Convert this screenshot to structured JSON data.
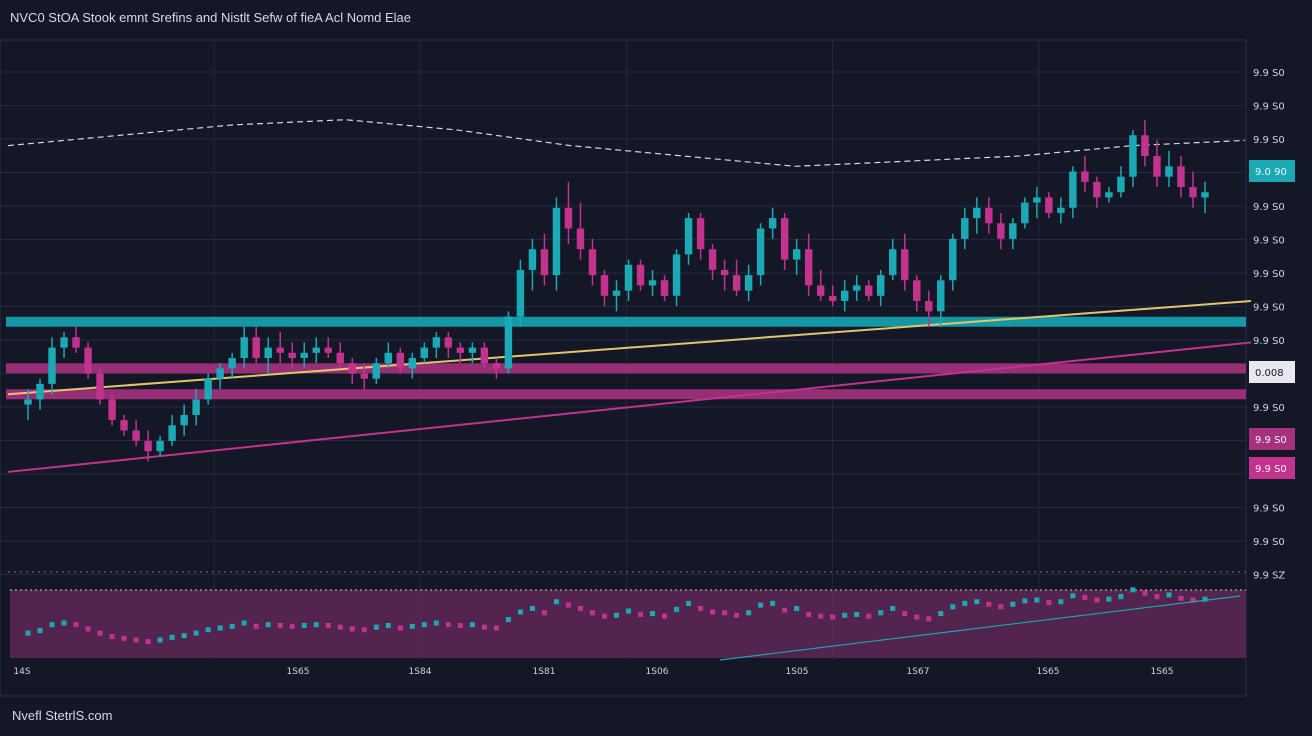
{
  "title": "NVC0 StOA Stook emnt Srefins and Nistlt Sefw  of fieA Acl Nomd Elae",
  "footer": "Nvefl StetrlS.com",
  "colors": {
    "background": "#141726",
    "up": "#1aa9b5",
    "down": "#c2338d",
    "trend_yellow": "#e0c76a",
    "trend_magenta": "#c2338d",
    "band_teal": "#14a6b4",
    "band_magenta": "#a6317f",
    "volume_bg": "#5a2652",
    "grid": "#232840"
  },
  "chart_data": {
    "type": "candlestick",
    "title": "NVC0 StOA Stook emnt Srefins and Nistlt Sefw  of fieA Acl Nomd Elae",
    "y_tick_labels": [
      "9.9 S0",
      "9.9 S0",
      "9.9 S0",
      "9.9 S0",
      "9.9 S0",
      "9.9 S0",
      "9.9 S0",
      "9.9 S0",
      "9.9 S0",
      "9.9 S0",
      "9.9 S0",
      "9.9 S0",
      "9.9 S0",
      "9.9 S0",
      "9.9 S0",
      "9.9 SZ"
    ],
    "price_tags": [
      {
        "text": "9.0 90",
        "color": "#1aa9b5"
      },
      {
        "text": "0.008",
        "color": "#e8e8f0"
      },
      {
        "text": "9.9 S0",
        "color": "#c2338d"
      },
      {
        "text": "9.9 S0",
        "color": "#c2338d"
      }
    ],
    "x_tick_labels": [
      "14S",
      "1S65",
      "1S84",
      "1S81",
      "1S06",
      "1S05",
      "1S67",
      "1S65",
      "1S65"
    ],
    "ylim": [
      0,
      100
    ],
    "grid": true,
    "candles": [
      {
        "o": 30,
        "h": 33,
        "l": 27,
        "c": 31
      },
      {
        "o": 31,
        "h": 35,
        "l": 29,
        "c": 34
      },
      {
        "o": 34,
        "h": 43,
        "l": 32,
        "c": 41
      },
      {
        "o": 41,
        "h": 44,
        "l": 39,
        "c": 43
      },
      {
        "o": 43,
        "h": 45,
        "l": 40,
        "c": 41
      },
      {
        "o": 41,
        "h": 42,
        "l": 35,
        "c": 36
      },
      {
        "o": 36,
        "h": 37,
        "l": 30,
        "c": 31
      },
      {
        "o": 31,
        "h": 32,
        "l": 26,
        "c": 27
      },
      {
        "o": 27,
        "h": 28,
        "l": 24,
        "c": 25
      },
      {
        "o": 25,
        "h": 27,
        "l": 22,
        "c": 23
      },
      {
        "o": 23,
        "h": 25,
        "l": 19,
        "c": 21
      },
      {
        "o": 21,
        "h": 24,
        "l": 20,
        "c": 23
      },
      {
        "o": 23,
        "h": 28,
        "l": 22,
        "c": 26
      },
      {
        "o": 26,
        "h": 30,
        "l": 24,
        "c": 28
      },
      {
        "o": 28,
        "h": 33,
        "l": 26,
        "c": 31
      },
      {
        "o": 31,
        "h": 36,
        "l": 30,
        "c": 35
      },
      {
        "o": 35,
        "h": 38,
        "l": 33,
        "c": 37
      },
      {
        "o": 37,
        "h": 40,
        "l": 35,
        "c": 39
      },
      {
        "o": 39,
        "h": 45,
        "l": 37,
        "c": 43
      },
      {
        "o": 43,
        "h": 45,
        "l": 38,
        "c": 39
      },
      {
        "o": 39,
        "h": 43,
        "l": 36,
        "c": 41
      },
      {
        "o": 41,
        "h": 44,
        "l": 38,
        "c": 40
      },
      {
        "o": 40,
        "h": 42,
        "l": 37,
        "c": 39
      },
      {
        "o": 39,
        "h": 42,
        "l": 37,
        "c": 40
      },
      {
        "o": 40,
        "h": 43,
        "l": 38,
        "c": 41
      },
      {
        "o": 41,
        "h": 43,
        "l": 39,
        "c": 40
      },
      {
        "o": 40,
        "h": 42,
        "l": 37,
        "c": 38
      },
      {
        "o": 38,
        "h": 39,
        "l": 34,
        "c": 36
      },
      {
        "o": 36,
        "h": 38,
        "l": 33,
        "c": 35
      },
      {
        "o": 35,
        "h": 39,
        "l": 34,
        "c": 38
      },
      {
        "o": 38,
        "h": 42,
        "l": 37,
        "c": 40
      },
      {
        "o": 40,
        "h": 41,
        "l": 36,
        "c": 37
      },
      {
        "o": 37,
        "h": 40,
        "l": 35,
        "c": 39
      },
      {
        "o": 39,
        "h": 42,
        "l": 38,
        "c": 41
      },
      {
        "o": 41,
        "h": 44,
        "l": 39,
        "c": 43
      },
      {
        "o": 43,
        "h": 44,
        "l": 39,
        "c": 41
      },
      {
        "o": 41,
        "h": 42,
        "l": 38,
        "c": 40
      },
      {
        "o": 40,
        "h": 42,
        "l": 38,
        "c": 41
      },
      {
        "o": 41,
        "h": 42,
        "l": 37,
        "c": 38
      },
      {
        "o": 38,
        "h": 39,
        "l": 35,
        "c": 37
      },
      {
        "o": 37,
        "h": 48,
        "l": 36,
        "c": 47
      },
      {
        "o": 47,
        "h": 58,
        "l": 45,
        "c": 56
      },
      {
        "o": 56,
        "h": 62,
        "l": 52,
        "c": 60
      },
      {
        "o": 60,
        "h": 63,
        "l": 53,
        "c": 55
      },
      {
        "o": 55,
        "h": 70,
        "l": 52,
        "c": 68
      },
      {
        "o": 68,
        "h": 73,
        "l": 61,
        "c": 64
      },
      {
        "o": 64,
        "h": 69,
        "l": 58,
        "c": 60
      },
      {
        "o": 60,
        "h": 62,
        "l": 53,
        "c": 55
      },
      {
        "o": 55,
        "h": 56,
        "l": 49,
        "c": 51
      },
      {
        "o": 51,
        "h": 54,
        "l": 48,
        "c": 52
      },
      {
        "o": 52,
        "h": 58,
        "l": 50,
        "c": 57
      },
      {
        "o": 57,
        "h": 58,
        "l": 52,
        "c": 53
      },
      {
        "o": 53,
        "h": 56,
        "l": 51,
        "c": 54
      },
      {
        "o": 54,
        "h": 55,
        "l": 50,
        "c": 51
      },
      {
        "o": 51,
        "h": 60,
        "l": 49,
        "c": 59
      },
      {
        "o": 59,
        "h": 67,
        "l": 57,
        "c": 66
      },
      {
        "o": 66,
        "h": 67,
        "l": 58,
        "c": 60
      },
      {
        "o": 60,
        "h": 61,
        "l": 54,
        "c": 56
      },
      {
        "o": 56,
        "h": 58,
        "l": 52,
        "c": 55
      },
      {
        "o": 55,
        "h": 58,
        "l": 51,
        "c": 52
      },
      {
        "o": 52,
        "h": 57,
        "l": 50,
        "c": 55
      },
      {
        "o": 55,
        "h": 65,
        "l": 53,
        "c": 64
      },
      {
        "o": 64,
        "h": 68,
        "l": 62,
        "c": 66
      },
      {
        "o": 66,
        "h": 67,
        "l": 56,
        "c": 58
      },
      {
        "o": 58,
        "h": 62,
        "l": 55,
        "c": 60
      },
      {
        "o": 60,
        "h": 63,
        "l": 51,
        "c": 53
      },
      {
        "o": 53,
        "h": 56,
        "l": 50,
        "c": 51
      },
      {
        "o": 51,
        "h": 53,
        "l": 49,
        "c": 50
      },
      {
        "o": 50,
        "h": 54,
        "l": 48,
        "c": 52
      },
      {
        "o": 52,
        "h": 55,
        "l": 50,
        "c": 53
      },
      {
        "o": 53,
        "h": 54,
        "l": 50,
        "c": 51
      },
      {
        "o": 51,
        "h": 56,
        "l": 49,
        "c": 55
      },
      {
        "o": 55,
        "h": 62,
        "l": 54,
        "c": 60
      },
      {
        "o": 60,
        "h": 63,
        "l": 52,
        "c": 54
      },
      {
        "o": 54,
        "h": 55,
        "l": 48,
        "c": 50
      },
      {
        "o": 50,
        "h": 52,
        "l": 45,
        "c": 48
      },
      {
        "o": 48,
        "h": 55,
        "l": 45,
        "c": 54
      },
      {
        "o": 54,
        "h": 63,
        "l": 52,
        "c": 62
      },
      {
        "o": 62,
        "h": 68,
        "l": 60,
        "c": 66
      },
      {
        "o": 66,
        "h": 70,
        "l": 63,
        "c": 68
      },
      {
        "o": 68,
        "h": 70,
        "l": 63,
        "c": 65
      },
      {
        "o": 65,
        "h": 67,
        "l": 60,
        "c": 62
      },
      {
        "o": 62,
        "h": 66,
        "l": 60,
        "c": 65
      },
      {
        "o": 65,
        "h": 70,
        "l": 64,
        "c": 69
      },
      {
        "o": 69,
        "h": 72,
        "l": 66,
        "c": 70
      },
      {
        "o": 70,
        "h": 71,
        "l": 66,
        "c": 67
      },
      {
        "o": 67,
        "h": 70,
        "l": 65,
        "c": 68
      },
      {
        "o": 68,
        "h": 76,
        "l": 66,
        "c": 75
      },
      {
        "o": 75,
        "h": 78,
        "l": 71,
        "c": 73
      },
      {
        "o": 73,
        "h": 74,
        "l": 68,
        "c": 70
      },
      {
        "o": 70,
        "h": 72,
        "l": 69,
        "c": 71
      },
      {
        "o": 71,
        "h": 76,
        "l": 70,
        "c": 74
      },
      {
        "o": 74,
        "h": 83,
        "l": 72,
        "c": 82
      },
      {
        "o": 82,
        "h": 85,
        "l": 76,
        "c": 78
      },
      {
        "o": 78,
        "h": 81,
        "l": 72,
        "c": 74
      },
      {
        "o": 74,
        "h": 79,
        "l": 72,
        "c": 76
      },
      {
        "o": 76,
        "h": 78,
        "l": 70,
        "c": 72
      },
      {
        "o": 72,
        "h": 75,
        "l": 68,
        "c": 70
      },
      {
        "o": 70,
        "h": 73,
        "l": 67,
        "c": 71
      }
    ],
    "trend_lines": [
      {
        "color": "#e0c76a",
        "from": [
          0,
          32
        ],
        "to": [
          100,
          50
        ]
      },
      {
        "color": "#c2338d",
        "from": [
          0,
          17
        ],
        "to": [
          100,
          42
        ]
      }
    ],
    "moving_average": {
      "style": "dashed",
      "color": "#d9d9e6",
      "values": [
        80,
        82,
        84,
        85,
        83,
        80,
        78,
        76,
        77,
        78,
        80,
        81
      ]
    },
    "bands": [
      {
        "level": 46,
        "color": "#14a6b4"
      },
      {
        "level": 37,
        "color": "#a6317f"
      },
      {
        "level": 32,
        "color": "#a6317f"
      }
    ],
    "volume": {
      "color_up": "#1aa9b5",
      "color_down": "#c2338d"
    }
  }
}
